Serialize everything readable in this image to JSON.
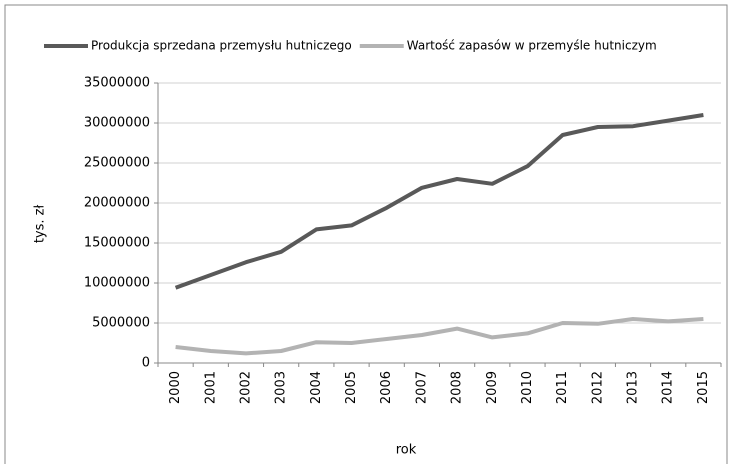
{
  "chart_data": {
    "type": "line",
    "categories": [
      "2000",
      "2001",
      "2002",
      "2003",
      "2004",
      "2005",
      "2006",
      "2007",
      "2008",
      "2009",
      "2010",
      "2011",
      "2012",
      "2013",
      "2014",
      "2015"
    ],
    "series": [
      {
        "name": "Produkcja sprzedana przemysłu hutniczego",
        "color": "#595959",
        "values": [
          9400000,
          11000000,
          12600000,
          13900000,
          16700000,
          17200000,
          19400000,
          21900000,
          23000000,
          22400000,
          24600000,
          28500000,
          29500000,
          29600000,
          30300000,
          31000000
        ]
      },
      {
        "name": "Wartość zapasów w przemyśle hutniczym",
        "color": "#b3b3b3",
        "values": [
          2000000,
          1500000,
          1200000,
          1500000,
          2600000,
          2500000,
          3000000,
          3500000,
          4300000,
          3200000,
          3700000,
          5000000,
          4900000,
          5500000,
          5200000,
          5500000
        ]
      }
    ],
    "xlabel": "rok",
    "ylabel": "tys. zł",
    "ylim": [
      0,
      35000000
    ],
    "yticks": [
      0,
      5000000,
      10000000,
      15000000,
      20000000,
      25000000,
      30000000,
      35000000
    ],
    "grid": true,
    "legend": "top"
  }
}
